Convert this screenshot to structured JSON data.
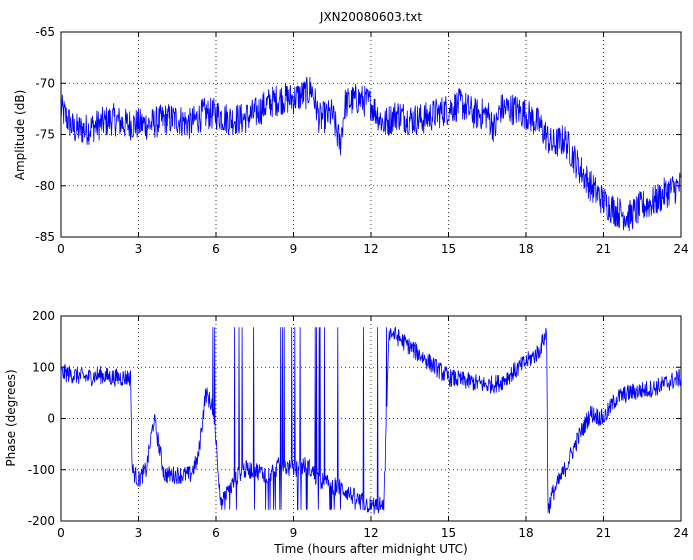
{
  "figure": {
    "title": "JXN20080603.txt"
  },
  "chart_data": [
    {
      "type": "line",
      "title": "JXN20080603.txt",
      "xlabel": "",
      "ylabel": "Amplitude (dB)",
      "xlim": [
        0,
        24
      ],
      "ylim": [
        -85,
        -65
      ],
      "xticks": [
        0,
        3,
        6,
        9,
        12,
        15,
        18,
        21,
        24
      ],
      "yticks": [
        -85,
        -80,
        -75,
        -70,
        -65
      ],
      "grid": true,
      "series": [
        {
          "color": "#0000ff",
          "x": [
            0,
            0.5,
            1,
            1.5,
            2,
            2.5,
            3,
            3.5,
            4,
            4.5,
            5,
            5.5,
            6,
            6.5,
            7,
            7.5,
            8,
            8.5,
            9,
            9.5,
            9.7,
            10,
            10.5,
            10.8,
            11,
            11.5,
            12,
            12.5,
            13,
            13.5,
            14,
            14.5,
            15,
            15.5,
            16,
            16.5,
            16.8,
            17,
            17.5,
            18,
            18.5,
            19,
            19.5,
            20,
            20.5,
            21,
            21.5,
            22,
            22.5,
            23,
            23.5,
            24
          ],
          "y": [
            -72.5,
            -74.5,
            -74.5,
            -74,
            -73.5,
            -74,
            -74,
            -74,
            -73.5,
            -73.5,
            -74,
            -73,
            -73,
            -73.5,
            -73.5,
            -73,
            -72,
            -71.5,
            -71.5,
            -71,
            -70.5,
            -73.5,
            -73,
            -76,
            -72,
            -71.5,
            -72,
            -74,
            -73,
            -73.5,
            -73.5,
            -73,
            -72.5,
            -72,
            -73,
            -73,
            -74.5,
            -72.5,
            -72.5,
            -73,
            -74,
            -76,
            -75.5,
            -78,
            -80,
            -81.5,
            -82.5,
            -83,
            -82,
            -81.5,
            -80.5,
            -80
          ]
        }
      ]
    },
    {
      "type": "line",
      "title": "",
      "xlabel": "Time (hours after midnight UTC)",
      "ylabel": "Phase (degrees)",
      "xlim": [
        0,
        24
      ],
      "ylim": [
        -200,
        200
      ],
      "xticks": [
        0,
        3,
        6,
        9,
        12,
        15,
        18,
        21,
        24
      ],
      "yticks": [
        -200,
        -100,
        0,
        100,
        200
      ],
      "grid": true,
      "series": [
        {
          "color": "#0000ff",
          "x": [
            0,
            0.5,
            1,
            1.5,
            2,
            2.5,
            2.7,
            2.75,
            3,
            3.3,
            3.6,
            4,
            4.5,
            5,
            5.3,
            5.6,
            5.9,
            6.2,
            6.5,
            7,
            7.5,
            8,
            8.5,
            9,
            9.5,
            10,
            10.5,
            11,
            11.5,
            12,
            12.5,
            12.7,
            13,
            13.5,
            14,
            14.5,
            15,
            15.5,
            16,
            16.5,
            17,
            17.5,
            18,
            18.5,
            18.8,
            18.85,
            19,
            19.5,
            20,
            20.5,
            21,
            21.5,
            22,
            22.5,
            23,
            23.5,
            24
          ],
          "y": [
            90,
            85,
            80,
            85,
            80,
            80,
            80,
            -100,
            -120,
            -100,
            0,
            -110,
            -110,
            -110,
            -80,
            50,
            20,
            -170,
            -140,
            -100,
            -100,
            -110,
            -90,
            -100,
            -90,
            -120,
            -130,
            -140,
            -160,
            -170,
            -170,
            170,
            160,
            140,
            120,
            100,
            80,
            75,
            70,
            65,
            70,
            90,
            110,
            130,
            170,
            -180,
            -150,
            -100,
            -40,
            10,
            0,
            40,
            50,
            55,
            60,
            70,
            80
          ]
        }
      ]
    }
  ]
}
